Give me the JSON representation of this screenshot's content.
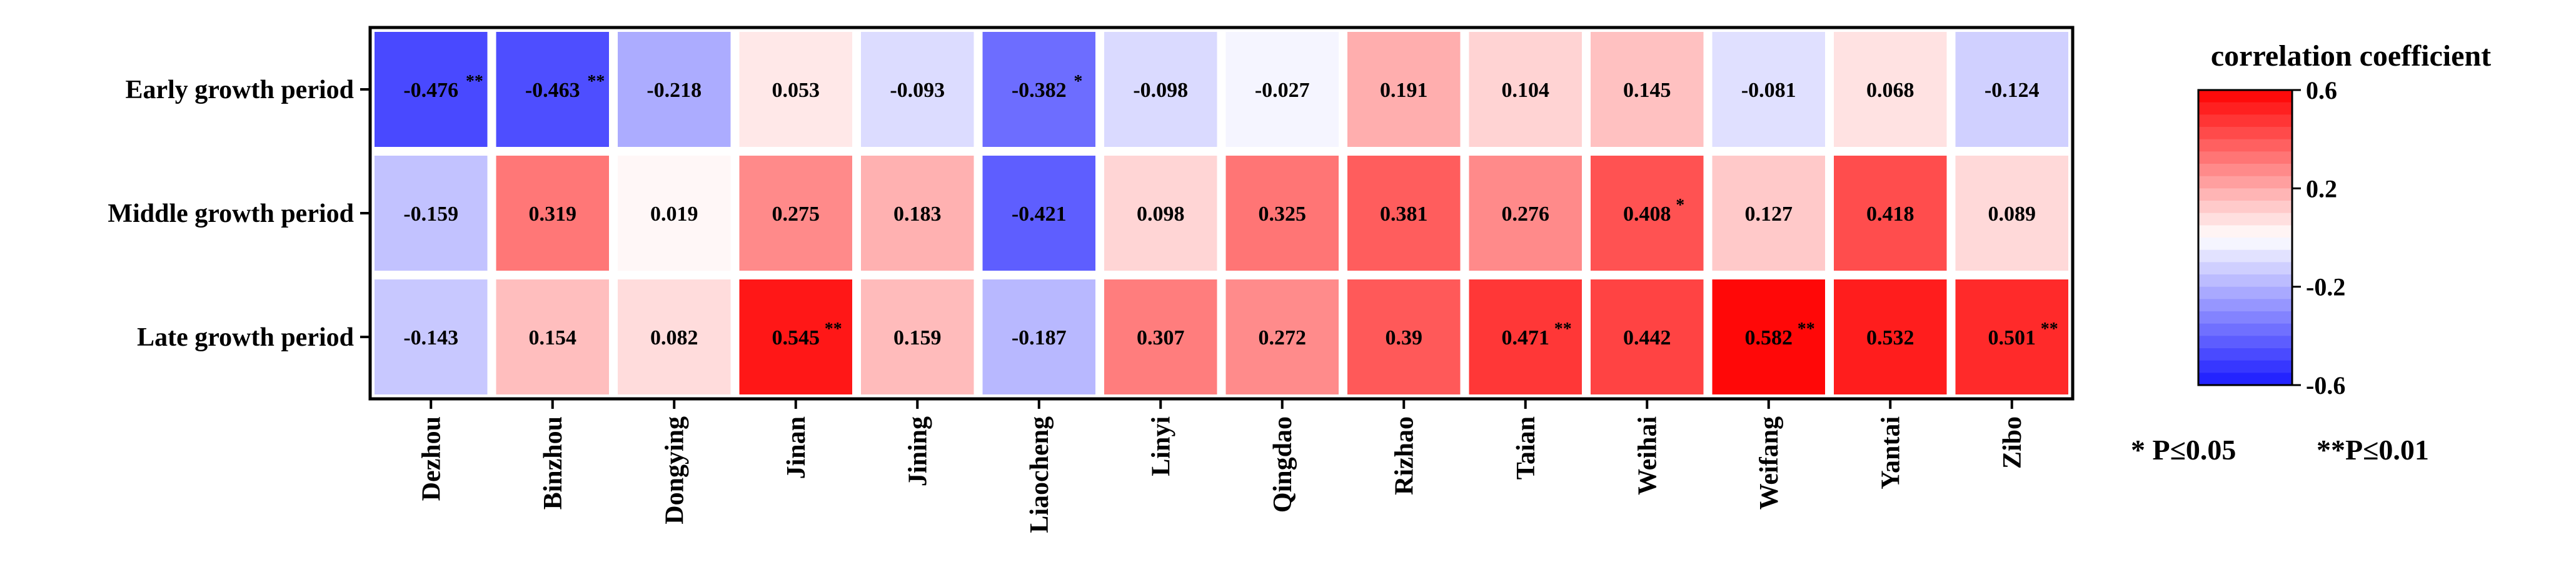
{
  "chart_data": {
    "type": "heatmap",
    "rows": [
      "Early growth period",
      "Middle growth period",
      "Late growth period"
    ],
    "columns": [
      "Dezhou",
      "Binzhou",
      "Dongying",
      "Jinan",
      "Jining",
      "Liaocheng",
      "Linyi",
      "Qingdao",
      "Rizhao",
      "Taian",
      "Weihai",
      "Weifang",
      "Yantai",
      "Zibo"
    ],
    "values": [
      [
        -0.476,
        -0.463,
        -0.218,
        0.053,
        -0.093,
        -0.382,
        -0.098,
        -0.027,
        0.191,
        0.104,
        0.145,
        -0.081,
        0.068,
        -0.124
      ],
      [
        -0.159,
        0.319,
        0.019,
        0.275,
        0.183,
        -0.421,
        0.098,
        0.325,
        0.381,
        0.276,
        0.408,
        0.127,
        0.418,
        0.089
      ],
      [
        -0.143,
        0.154,
        0.082,
        0.545,
        0.159,
        -0.187,
        0.307,
        0.272,
        0.39,
        0.471,
        0.442,
        0.582,
        0.532,
        0.501
      ]
    ],
    "value_labels": [
      [
        "-0.476",
        "-0.463",
        "-0.218",
        "0.053",
        "-0.093",
        "-0.382",
        "-0.098",
        "-0.027",
        "0.191",
        "0.104",
        "0.145",
        "-0.081",
        "0.068",
        "-0.124"
      ],
      [
        "-0.159",
        "0.319",
        "0.019",
        "0.275",
        "0.183",
        "-0.421",
        "0.098",
        "0.325",
        "0.381",
        "0.276",
        "0.408",
        "0.127",
        "0.418",
        "0.089"
      ],
      [
        "-0.143",
        "0.154",
        "0.082",
        "0.545",
        "0.159",
        "-0.187",
        "0.307",
        "0.272",
        "0.39",
        "0.471",
        "0.442",
        "0.582",
        "0.532",
        "0.501"
      ]
    ],
    "significance": [
      [
        "**",
        "**",
        "",
        "",
        "",
        "*",
        "",
        "",
        "",
        "",
        "",
        "",
        "",
        ""
      ],
      [
        "",
        "",
        "",
        "",
        "",
        "",
        "",
        "",
        "",
        "",
        "*",
        "",
        "",
        ""
      ],
      [
        "",
        "",
        "",
        "**",
        "",
        "",
        "",
        "",
        "",
        "**",
        "",
        "**",
        "",
        "**"
      ]
    ],
    "colorbar": {
      "title": "correlation coefficient",
      "range": [
        -0.6,
        0.6
      ],
      "ticks": [
        "0.6",
        "0.2",
        "-0.2",
        "-0.6"
      ],
      "tick_values": [
        0.6,
        0.2,
        -0.2,
        -0.6
      ],
      "low_color": "#1a1aff",
      "mid_color": "#ffffff",
      "high_color": "#ff0000"
    },
    "significance_notes": [
      "* P≤0.05",
      "**P≤0.01"
    ]
  }
}
